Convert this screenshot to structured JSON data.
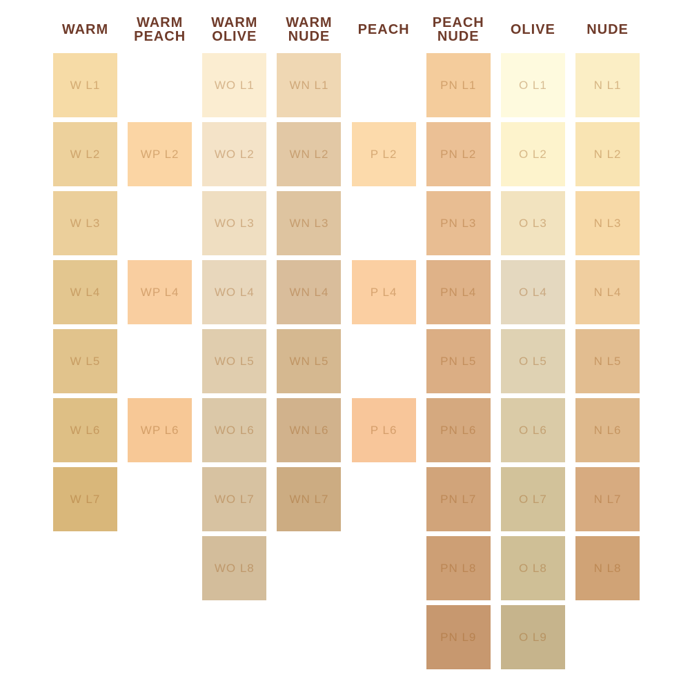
{
  "styles": {
    "background_color": "#FFFFFF",
    "header_text_color": "#6F3B2A",
    "swatch_label_color": "rgba(161, 98, 35, 0.40)"
  },
  "chart_data": {
    "type": "table",
    "description": "Foundation shade chart: 8 undertone families (columns) by lightness level L1-L9 (rows), each cell a labeled color swatch",
    "categories": [
      "WARM",
      "WARM PEACH",
      "WARM OLIVE",
      "WARM NUDE",
      "PEACH",
      "PEACH NUDE",
      "OLIVE",
      "NUDE"
    ],
    "columns": [
      {
        "header": "WARM",
        "header_lines": [
          "WARM"
        ],
        "swatches": [
          {
            "label": "W L1",
            "row": 1,
            "color": "#F6DBA6"
          },
          {
            "label": "W L2",
            "row": 2,
            "color": "#EDD19C"
          },
          {
            "label": "W L3",
            "row": 3,
            "color": "#EBCF9B"
          },
          {
            "label": "W L4",
            "row": 4,
            "color": "#E3C68F"
          },
          {
            "label": "W L5",
            "row": 5,
            "color": "#E1C38C"
          },
          {
            "label": "W L6",
            "row": 6,
            "color": "#DEBF85"
          },
          {
            "label": "W L7",
            "row": 7,
            "color": "#D9B77A"
          }
        ]
      },
      {
        "header": "WARM PEACH",
        "header_lines": [
          "WARM",
          "PEACH"
        ],
        "swatches": [
          {
            "label": "WP L2",
            "row": 2,
            "color": "#FBD5A4"
          },
          {
            "label": "WP L4",
            "row": 4,
            "color": "#F9CEA0"
          },
          {
            "label": "WP L6",
            "row": 6,
            "color": "#F7C896"
          }
        ]
      },
      {
        "header": "WARM OLIVE",
        "header_lines": [
          "WARM",
          "OLIVE"
        ],
        "swatches": [
          {
            "label": "WO L1",
            "row": 1,
            "color": "#FBEDD1"
          },
          {
            "label": "WO L2",
            "row": 2,
            "color": "#F4E3C8"
          },
          {
            "label": "WO L3",
            "row": 3,
            "color": "#EFDEC1"
          },
          {
            "label": "WO L4",
            "row": 4,
            "color": "#E8D7BC"
          },
          {
            "label": "WO L5",
            "row": 5,
            "color": "#E0CDAE"
          },
          {
            "label": "WO L6",
            "row": 6,
            "color": "#DBC8A8"
          },
          {
            "label": "WO L7",
            "row": 7,
            "color": "#D7C2A1"
          },
          {
            "label": "WO L8",
            "row": 8,
            "color": "#D3BD9B"
          }
        ]
      },
      {
        "header": "WARM NUDE",
        "header_lines": [
          "WARM",
          "NUDE"
        ],
        "swatches": [
          {
            "label": "WN L1",
            "row": 1,
            "color": "#EFD7B3"
          },
          {
            "label": "WN L2",
            "row": 2,
            "color": "#E2C8A5"
          },
          {
            "label": "WN L3",
            "row": 3,
            "color": "#DEC4A0"
          },
          {
            "label": "WN L4",
            "row": 4,
            "color": "#D9BD9B"
          },
          {
            "label": "WN L5",
            "row": 5,
            "color": "#D5B890"
          },
          {
            "label": "WN L6",
            "row": 6,
            "color": "#D1B28C"
          },
          {
            "label": "WN L7",
            "row": 7,
            "color": "#CCAC82"
          }
        ]
      },
      {
        "header": "PEACH",
        "header_lines": [
          "PEACH"
        ],
        "swatches": [
          {
            "label": "P L2",
            "row": 2,
            "color": "#FCDAAB"
          },
          {
            "label": "P L4",
            "row": 4,
            "color": "#FBCFA2"
          },
          {
            "label": "P L6",
            "row": 6,
            "color": "#F8C69A"
          }
        ]
      },
      {
        "header": "PEACH NUDE",
        "header_lines": [
          "PEACH",
          "NUDE"
        ],
        "swatches": [
          {
            "label": "PN L1",
            "row": 1,
            "color": "#F4CC9C"
          },
          {
            "label": "PN L2",
            "row": 2,
            "color": "#EBC095"
          },
          {
            "label": "PN L3",
            "row": 3,
            "color": "#E8BD92"
          },
          {
            "label": "PN L4",
            "row": 4,
            "color": "#DFB288"
          },
          {
            "label": "PN L5",
            "row": 5,
            "color": "#DBAE84"
          },
          {
            "label": "PN L6",
            "row": 6,
            "color": "#D5A97F"
          },
          {
            "label": "PN L7",
            "row": 7,
            "color": "#D1A47A"
          },
          {
            "label": "PN L8",
            "row": 8,
            "color": "#CD9F75"
          },
          {
            "label": "PN L9",
            "row": 9,
            "color": "#C7986F"
          }
        ]
      },
      {
        "header": "OLIVE",
        "header_lines": [
          "OLIVE"
        ],
        "swatches": [
          {
            "label": "O L1",
            "row": 1,
            "color": "#FEFADE"
          },
          {
            "label": "O L2",
            "row": 2,
            "color": "#FDF3CC"
          },
          {
            "label": "O L3",
            "row": 3,
            "color": "#F2E3BF"
          },
          {
            "label": "O L4",
            "row": 4,
            "color": "#E4D8BF"
          },
          {
            "label": "O L5",
            "row": 5,
            "color": "#DFD2B3"
          },
          {
            "label": "O L6",
            "row": 6,
            "color": "#DACBA7"
          },
          {
            "label": "O L7",
            "row": 7,
            "color": "#D2C29A"
          },
          {
            "label": "O L8",
            "row": 8,
            "color": "#CFBF96"
          },
          {
            "label": "O L9",
            "row": 9,
            "color": "#C6B48C"
          }
        ]
      },
      {
        "header": "NUDE",
        "header_lines": [
          "NUDE"
        ],
        "swatches": [
          {
            "label": "N L1",
            "row": 1,
            "color": "#FBEEC5"
          },
          {
            "label": "N L2",
            "row": 2,
            "color": "#F9E4B3"
          },
          {
            "label": "N L3",
            "row": 3,
            "color": "#F7D9A7"
          },
          {
            "label": "N L4",
            "row": 4,
            "color": "#F0CE9F"
          },
          {
            "label": "N L5",
            "row": 5,
            "color": "#E2BD90"
          },
          {
            "label": "N L6",
            "row": 6,
            "color": "#DEB88B"
          },
          {
            "label": "N L7",
            "row": 7,
            "color": "#D7AB80"
          },
          {
            "label": "N L8",
            "row": 8,
            "color": "#D0A376"
          }
        ]
      }
    ]
  }
}
